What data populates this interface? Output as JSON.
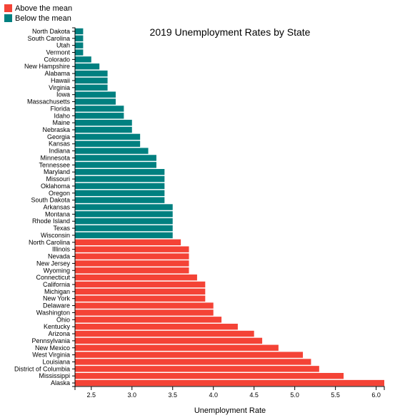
{
  "chart_data": {
    "type": "bar",
    "orientation": "horizontal",
    "title": "2019 Unemployment Rates by State",
    "xlabel": "Unemployment Rate",
    "ylabel": "",
    "xlim": [
      2.3,
      6.1
    ],
    "x_ticks": [
      "2.5",
      "3.0",
      "3.5",
      "4.0",
      "4.5",
      "5.0",
      "5.5",
      "6.0"
    ],
    "grid": false,
    "legend_position": "top-left",
    "legend": [
      {
        "label": "Above the mean",
        "color": "#f44336"
      },
      {
        "label": "Below the mean",
        "color": "#008080"
      }
    ],
    "categories": [
      "North Dakota",
      "South Carolina",
      "Utah",
      "Vermont",
      "Colorado",
      "New Hampshire",
      "Alabama",
      "Hawaii",
      "Virginia",
      "Iowa",
      "Massachusetts",
      "Florida",
      "Idaho",
      "Maine",
      "Nebraska",
      "Georgia",
      "Kansas",
      "Indiana",
      "Minnesota",
      "Tennessee",
      "Maryland",
      "Missouri",
      "Oklahoma",
      "Oregon",
      "South Dakota",
      "Arkansas",
      "Montana",
      "Rhode Island",
      "Texas",
      "Wisconsin",
      "North Carolina",
      "Illinois",
      "Nevada",
      "New Jersey",
      "Wyoming",
      "Connecticut",
      "California",
      "Michigan",
      "New York",
      "Delaware",
      "Washington",
      "Ohio",
      "Kentucky",
      "Arizona",
      "Pennsylvania",
      "New Mexico",
      "West Virginia",
      "Louisiana",
      "District of Columbia",
      "Mississippi",
      "Alaska"
    ],
    "values": [
      2.4,
      2.4,
      2.4,
      2.4,
      2.5,
      2.6,
      2.7,
      2.7,
      2.7,
      2.8,
      2.8,
      2.9,
      2.9,
      3.0,
      3.0,
      3.1,
      3.1,
      3.2,
      3.3,
      3.3,
      3.4,
      3.4,
      3.4,
      3.4,
      3.4,
      3.5,
      3.5,
      3.5,
      3.5,
      3.5,
      3.6,
      3.7,
      3.7,
      3.7,
      3.7,
      3.8,
      3.9,
      3.9,
      3.9,
      4.0,
      4.0,
      4.1,
      4.3,
      4.5,
      4.6,
      4.8,
      5.1,
      5.2,
      5.3,
      5.6,
      6.1
    ],
    "groups": [
      "below",
      "below",
      "below",
      "below",
      "below",
      "below",
      "below",
      "below",
      "below",
      "below",
      "below",
      "below",
      "below",
      "below",
      "below",
      "below",
      "below",
      "below",
      "below",
      "below",
      "below",
      "below",
      "below",
      "below",
      "below",
      "below",
      "below",
      "below",
      "below",
      "below",
      "above",
      "above",
      "above",
      "above",
      "above",
      "above",
      "above",
      "above",
      "above",
      "above",
      "above",
      "above",
      "above",
      "above",
      "above",
      "above",
      "above",
      "above",
      "above",
      "above",
      "above"
    ]
  }
}
